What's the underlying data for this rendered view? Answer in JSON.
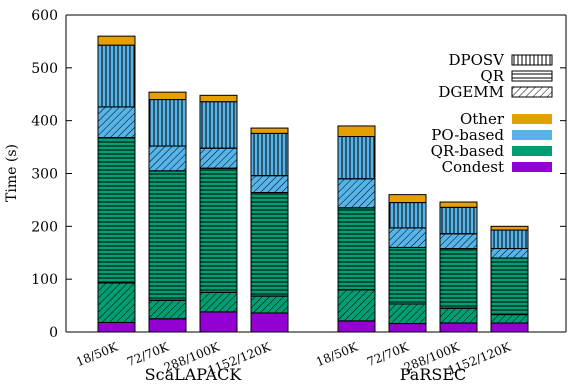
{
  "chart_data": {
    "type": "bar",
    "stacked": true,
    "ylabel": "Time (s)",
    "ylim": [
      0,
      600
    ],
    "yticks": [
      "0",
      "100",
      "200",
      "300",
      "400",
      "500",
      "600"
    ],
    "groups": [
      {
        "name": "ScaLAPACK",
        "categories": [
          "18/50K",
          "72/70K",
          "288/100K",
          "1152/120K"
        ]
      },
      {
        "name": "PaRSEC",
        "categories": [
          "18/50K",
          "72/70K",
          "288/100K",
          "1152/120K"
        ]
      }
    ],
    "kernel_segments": [
      "DGEMM",
      "QR",
      "DPOSV"
    ],
    "phase_colors": {
      "Condest": "#9400d3",
      "QR-based": "#009e73",
      "PO-based": "#56b4e9",
      "Other": "#e69f00"
    },
    "bars": [
      {
        "group": 0,
        "category": "18/50K",
        "segments": [
          {
            "phase": "Condest",
            "pattern": "none",
            "value": 18
          },
          {
            "phase": "QR-based",
            "pattern": "DGEMM",
            "value": 75
          },
          {
            "phase": "QR-based",
            "pattern": "QR",
            "value": 275
          },
          {
            "phase": "PO-based",
            "pattern": "DGEMM",
            "value": 58
          },
          {
            "phase": "PO-based",
            "pattern": "DPOSV",
            "value": 117
          },
          {
            "phase": "Other",
            "pattern": "none",
            "value": 17
          }
        ]
      },
      {
        "group": 0,
        "category": "72/70K",
        "segments": [
          {
            "phase": "Condest",
            "pattern": "none",
            "value": 25
          },
          {
            "phase": "QR-based",
            "pattern": "DGEMM",
            "value": 35
          },
          {
            "phase": "QR-based",
            "pattern": "QR",
            "value": 245
          },
          {
            "phase": "PO-based",
            "pattern": "DGEMM",
            "value": 47
          },
          {
            "phase": "PO-based",
            "pattern": "DPOSV",
            "value": 88
          },
          {
            "phase": "Other",
            "pattern": "none",
            "value": 14
          }
        ]
      },
      {
        "group": 0,
        "category": "288/100K",
        "segments": [
          {
            "phase": "Condest",
            "pattern": "none",
            "value": 38
          },
          {
            "phase": "QR-based",
            "pattern": "DGEMM",
            "value": 37
          },
          {
            "phase": "QR-based",
            "pattern": "QR",
            "value": 235
          },
          {
            "phase": "PO-based",
            "pattern": "DGEMM",
            "value": 38
          },
          {
            "phase": "PO-based",
            "pattern": "DPOSV",
            "value": 88
          },
          {
            "phase": "Other",
            "pattern": "none",
            "value": 12
          }
        ]
      },
      {
        "group": 0,
        "category": "1152/120K",
        "segments": [
          {
            "phase": "Condest",
            "pattern": "none",
            "value": 36
          },
          {
            "phase": "QR-based",
            "pattern": "DGEMM",
            "value": 32
          },
          {
            "phase": "QR-based",
            "pattern": "QR",
            "value": 196
          },
          {
            "phase": "PO-based",
            "pattern": "DGEMM",
            "value": 32
          },
          {
            "phase": "PO-based",
            "pattern": "DPOSV",
            "value": 80
          },
          {
            "phase": "Other",
            "pattern": "none",
            "value": 10
          }
        ]
      },
      {
        "group": 1,
        "category": "18/50K",
        "segments": [
          {
            "phase": "Condest",
            "pattern": "none",
            "value": 21
          },
          {
            "phase": "QR-based",
            "pattern": "DGEMM",
            "value": 59
          },
          {
            "phase": "QR-based",
            "pattern": "QR",
            "value": 155
          },
          {
            "phase": "PO-based",
            "pattern": "DGEMM",
            "value": 55
          },
          {
            "phase": "PO-based",
            "pattern": "DPOSV",
            "value": 80
          },
          {
            "phase": "Other",
            "pattern": "none",
            "value": 20
          }
        ]
      },
      {
        "group": 1,
        "category": "72/70K",
        "segments": [
          {
            "phase": "Condest",
            "pattern": "none",
            "value": 16
          },
          {
            "phase": "QR-based",
            "pattern": "DGEMM",
            "value": 37
          },
          {
            "phase": "QR-based",
            "pattern": "QR",
            "value": 107
          },
          {
            "phase": "PO-based",
            "pattern": "DGEMM",
            "value": 37
          },
          {
            "phase": "PO-based",
            "pattern": "DPOSV",
            "value": 48
          },
          {
            "phase": "Other",
            "pattern": "none",
            "value": 15
          }
        ]
      },
      {
        "group": 1,
        "category": "288/100K",
        "segments": [
          {
            "phase": "Condest",
            "pattern": "none",
            "value": 17
          },
          {
            "phase": "QR-based",
            "pattern": "DGEMM",
            "value": 28
          },
          {
            "phase": "QR-based",
            "pattern": "QR",
            "value": 113
          },
          {
            "phase": "PO-based",
            "pattern": "DGEMM",
            "value": 28
          },
          {
            "phase": "PO-based",
            "pattern": "DPOSV",
            "value": 50
          },
          {
            "phase": "Other",
            "pattern": "none",
            "value": 10
          }
        ]
      },
      {
        "group": 1,
        "category": "1152/120K",
        "segments": [
          {
            "phase": "Condest",
            "pattern": "none",
            "value": 17
          },
          {
            "phase": "QR-based",
            "pattern": "DGEMM",
            "value": 16
          },
          {
            "phase": "QR-based",
            "pattern": "QR",
            "value": 107
          },
          {
            "phase": "PO-based",
            "pattern": "DGEMM",
            "value": 18
          },
          {
            "phase": "PO-based",
            "pattern": "DPOSV",
            "value": 35
          },
          {
            "phase": "Other",
            "pattern": "none",
            "value": 7
          }
        ]
      }
    ],
    "legend_patterns": [
      {
        "label": "DPOSV",
        "pattern": "DPOSV"
      },
      {
        "label": "QR",
        "pattern": "QR"
      },
      {
        "label": "DGEMM",
        "pattern": "DGEMM"
      }
    ],
    "legend_colors": [
      {
        "label": "Other",
        "phase": "Other"
      },
      {
        "label": "PO-based",
        "phase": "PO-based"
      },
      {
        "label": "QR-based",
        "phase": "QR-based"
      },
      {
        "label": "Condest",
        "phase": "Condest"
      }
    ],
    "legend_position": "right",
    "grid": false
  }
}
